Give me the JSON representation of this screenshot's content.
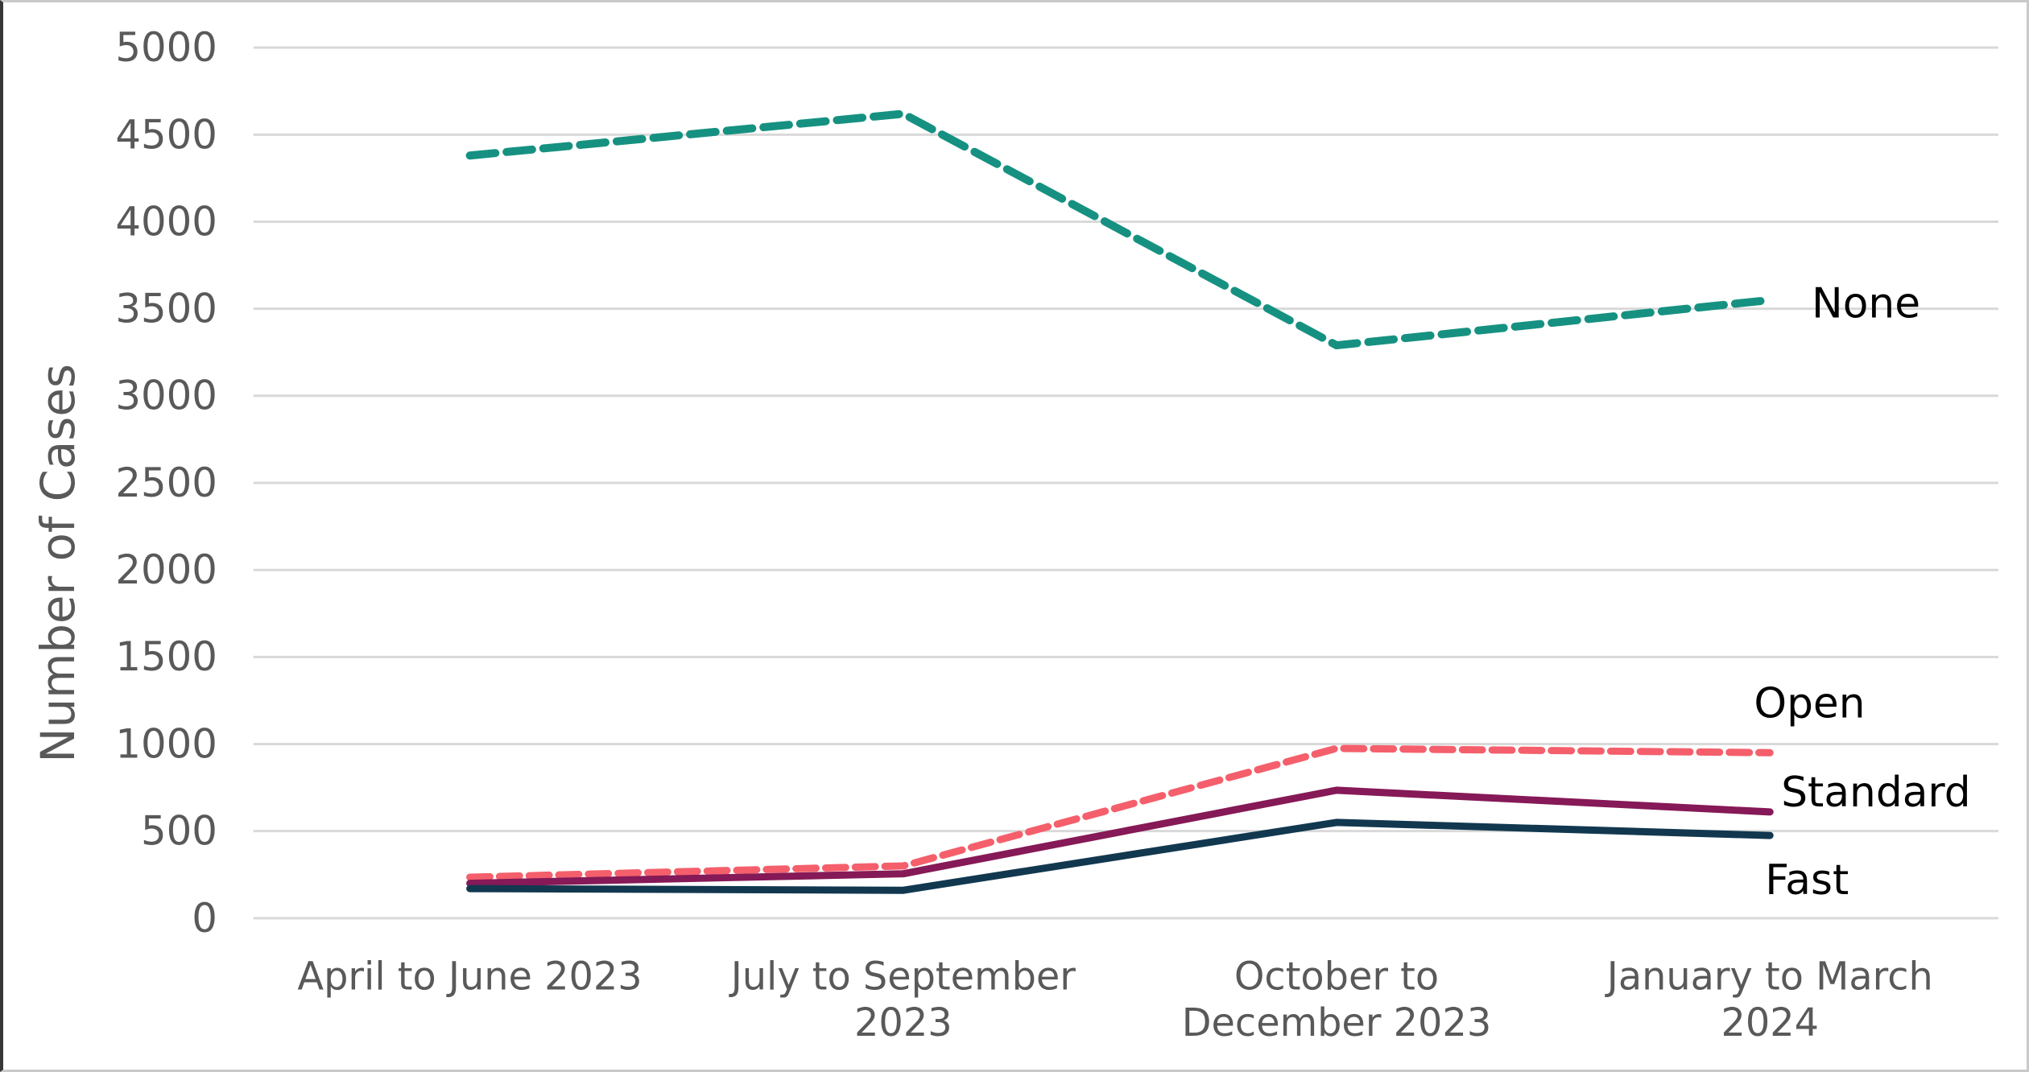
{
  "chart_data": {
    "type": "line",
    "title": "",
    "ylabel": "Number of Cases",
    "xlabel": "",
    "ylim": [
      0,
      5000
    ],
    "ytick_step": 500,
    "yticks": [
      0,
      500,
      1000,
      1500,
      2000,
      2500,
      3000,
      3500,
      4000,
      4500,
      5000
    ],
    "grid": "horizontal",
    "gridline_color": "#d9d9d9",
    "axis_text_color": "#595959",
    "series_label_color": "#000000",
    "legend": "series-end-labels",
    "categories": [
      "April to June 2023",
      "July to September\n2023",
      "October to\nDecember 2023",
      "January to March\n2024"
    ],
    "series": [
      {
        "name": "None",
        "values": [
          4380,
          4620,
          3290,
          3550
        ],
        "color": "#169181",
        "dashed": true,
        "label_offset": {
          "dx": 52,
          "dy": 22
        }
      },
      {
        "name": "Open",
        "values": [
          235,
          300,
          975,
          950
        ],
        "color": "#f45f6b",
        "dashed": true,
        "label_offset": {
          "dx": -20,
          "dy": -44
        }
      },
      {
        "name": "Standard",
        "values": [
          200,
          255,
          735,
          610
        ],
        "color": "#861957",
        "dashed": false,
        "label_offset": {
          "dx": 14,
          "dy": -7
        }
      },
      {
        "name": "Fast",
        "values": [
          170,
          160,
          550,
          475
        ],
        "color": "#12384f",
        "dashed": false,
        "label_offset": {
          "dx": -6,
          "dy": 73
        }
      }
    ]
  }
}
